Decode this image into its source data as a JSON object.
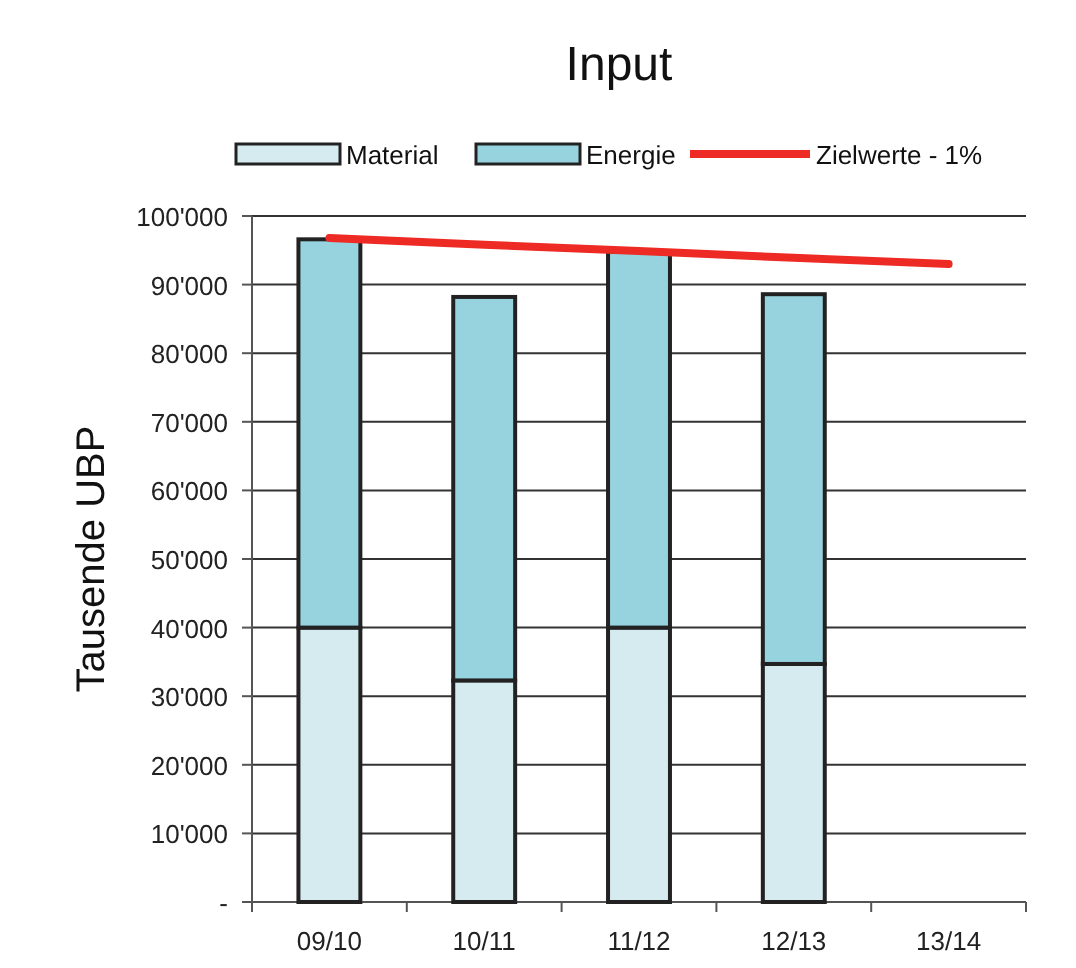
{
  "chart_data": {
    "type": "bar",
    "title": "Input",
    "ylabel": "Tausende UBP",
    "stacked": true,
    "grid": "y",
    "legend": "top",
    "categories": [
      "09/10",
      "10/11",
      "11/12",
      "12/13",
      "13/14"
    ],
    "series": [
      {
        "name": "Material",
        "color": "#d6ebf0",
        "values": [
          40000,
          32300,
          40000,
          34700,
          null
        ]
      },
      {
        "name": "Energie",
        "color": "#97d3de",
        "values": [
          56600,
          55900,
          54800,
          53900,
          null
        ]
      },
      {
        "name": "Zielwerte - 1%",
        "type": "line",
        "color": "#ee2a24",
        "values": [
          96800,
          95800,
          94900,
          93900,
          93000
        ]
      }
    ],
    "ylim": [
      0,
      100000
    ],
    "yticks": [
      {
        "value": 0,
        "label": "-"
      },
      {
        "value": 10000,
        "label": "10'000"
      },
      {
        "value": 20000,
        "label": "20'000"
      },
      {
        "value": 30000,
        "label": "30'000"
      },
      {
        "value": 40000,
        "label": "40'000"
      },
      {
        "value": 50000,
        "label": "50'000"
      },
      {
        "value": 60000,
        "label": "60'000"
      },
      {
        "value": 70000,
        "label": "70'000"
      },
      {
        "value": 80000,
        "label": "80'000"
      },
      {
        "value": 90000,
        "label": "90'000"
      },
      {
        "value": 100000,
        "label": "100'000"
      }
    ]
  }
}
